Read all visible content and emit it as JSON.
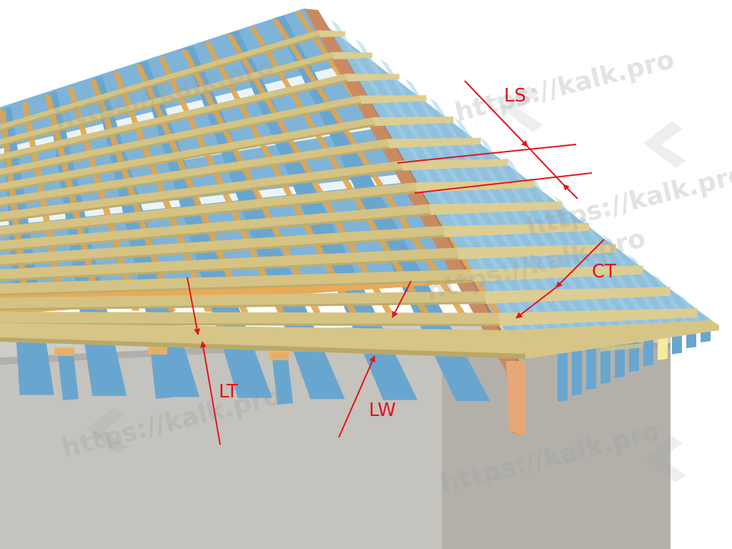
{
  "labels": {
    "ls": "LS",
    "ct": "CT",
    "lt": "LT",
    "lw": "LW"
  },
  "watermark": {
    "text": "https://kalk.pro"
  },
  "colors": {
    "background": "#ffffff",
    "wall_front": "#c5c3bd",
    "wall_side": "#b3b0aa",
    "battens": "#d4c383",
    "counter_battens": "#e2a54c",
    "membrane": "#7fb4d8",
    "rafters": "#69a6cf",
    "hip_rafter": "#c98a62",
    "dimension_lines": "#e3141b"
  }
}
